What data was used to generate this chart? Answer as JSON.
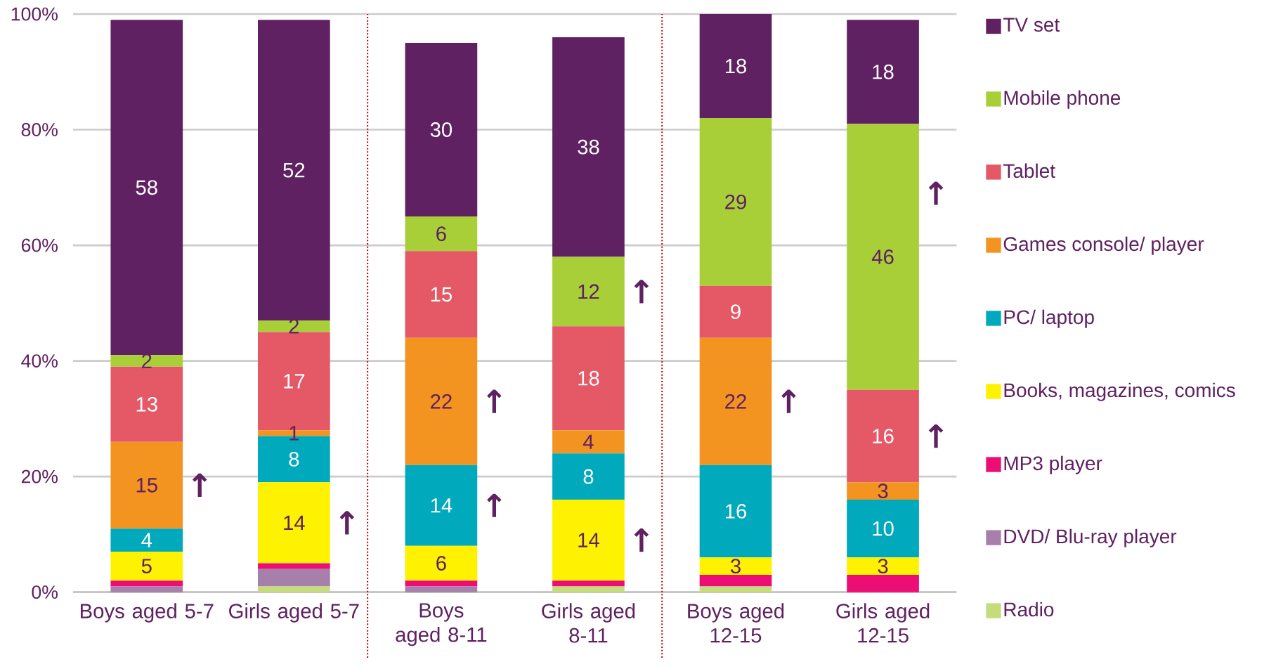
{
  "chart_data": {
    "type": "bar",
    "stacked": true,
    "categories": [
      "Boys aged 5-7",
      "Girls aged 5-7",
      "Boys aged 8-11",
      "Girls aged 8-11",
      "Boys aged 12-15",
      "Girls aged 12-15"
    ],
    "series": [
      {
        "name": "Radio",
        "color": "#c5dc7c",
        "values": [
          0,
          1,
          0,
          1,
          1,
          0
        ],
        "value_labels": [
          null,
          null,
          null,
          null,
          null,
          null
        ]
      },
      {
        "name": "DVD/ Blu-ray player",
        "color": "#a67fab",
        "values": [
          1,
          3,
          1,
          0,
          0,
          0
        ],
        "value_labels": [
          null,
          null,
          null,
          null,
          null,
          null
        ]
      },
      {
        "name": "MP3 player",
        "color": "#ec0d75",
        "values": [
          1,
          1,
          1,
          1,
          2,
          3
        ],
        "value_labels": [
          null,
          null,
          null,
          null,
          null,
          null
        ]
      },
      {
        "name": "Books, magazines, comics",
        "color": "#fff200",
        "values": [
          5,
          14,
          6,
          14,
          3,
          3
        ],
        "value_labels": [
          "5",
          "14",
          "6",
          "14",
          "3",
          "3"
        ]
      },
      {
        "name": "PC/ laptop",
        "color": "#00a9bc",
        "values": [
          4,
          8,
          14,
          8,
          16,
          10
        ],
        "value_labels": [
          "4",
          "8",
          "14",
          "8",
          "16",
          "10"
        ]
      },
      {
        "name": "Games console/ player",
        "color": "#f39320",
        "values": [
          15,
          1,
          22,
          4,
          22,
          3
        ],
        "value_labels": [
          "15",
          "1",
          "22",
          "4",
          "22",
          "3"
        ]
      },
      {
        "name": "Tablet",
        "color": "#e55866",
        "values": [
          13,
          17,
          15,
          18,
          9,
          16
        ],
        "value_labels": [
          "13",
          "17",
          "15",
          "18",
          "9",
          "16"
        ]
      },
      {
        "name": "Mobile phone",
        "color": "#a8cf38",
        "values": [
          2,
          2,
          6,
          12,
          29,
          46
        ],
        "value_labels": [
          "2",
          "2",
          "6",
          "12",
          "29",
          "46"
        ]
      },
      {
        "name": "TV set",
        "color": "#5f2161",
        "values": [
          58,
          52,
          30,
          38,
          18,
          18
        ],
        "value_labels": [
          "58",
          "52",
          "30",
          "38",
          "18",
          "18"
        ]
      }
    ],
    "ylim": [
      0,
      100
    ],
    "yticks": [
      {
        "value": 0,
        "label": "0%"
      },
      {
        "value": 20,
        "label": "20%"
      },
      {
        "value": 40,
        "label": "40%"
      },
      {
        "value": 60,
        "label": "60%"
      },
      {
        "value": 80,
        "label": "80%"
      },
      {
        "value": 100,
        "label": "100%"
      }
    ],
    "grid": "y",
    "legend": "right",
    "annotations": [
      {
        "text": "↑",
        "x": "Boys aged 5-7",
        "y": 26
      },
      {
        "text": "↑",
        "x": "Girls aged 5-7",
        "y": 19
      },
      {
        "text": "↑",
        "x": "Boys aged 8-11",
        "y": 44
      },
      {
        "text": "↑",
        "x": "Boys aged 8-11",
        "y": 22
      },
      {
        "text": "↑",
        "x": "Girls aged 8-11",
        "y": 58
      },
      {
        "text": "↑",
        "x": "Girls aged 8-11",
        "y": 16
      },
      {
        "text": "↑",
        "x": "Boys aged 12-15",
        "y": 44
      },
      {
        "text": "↑",
        "x": "Girls aged 12-15",
        "y": 81
      },
      {
        "text": "↑",
        "x": "Girls aged 12-15",
        "y": 35
      }
    ]
  }
}
